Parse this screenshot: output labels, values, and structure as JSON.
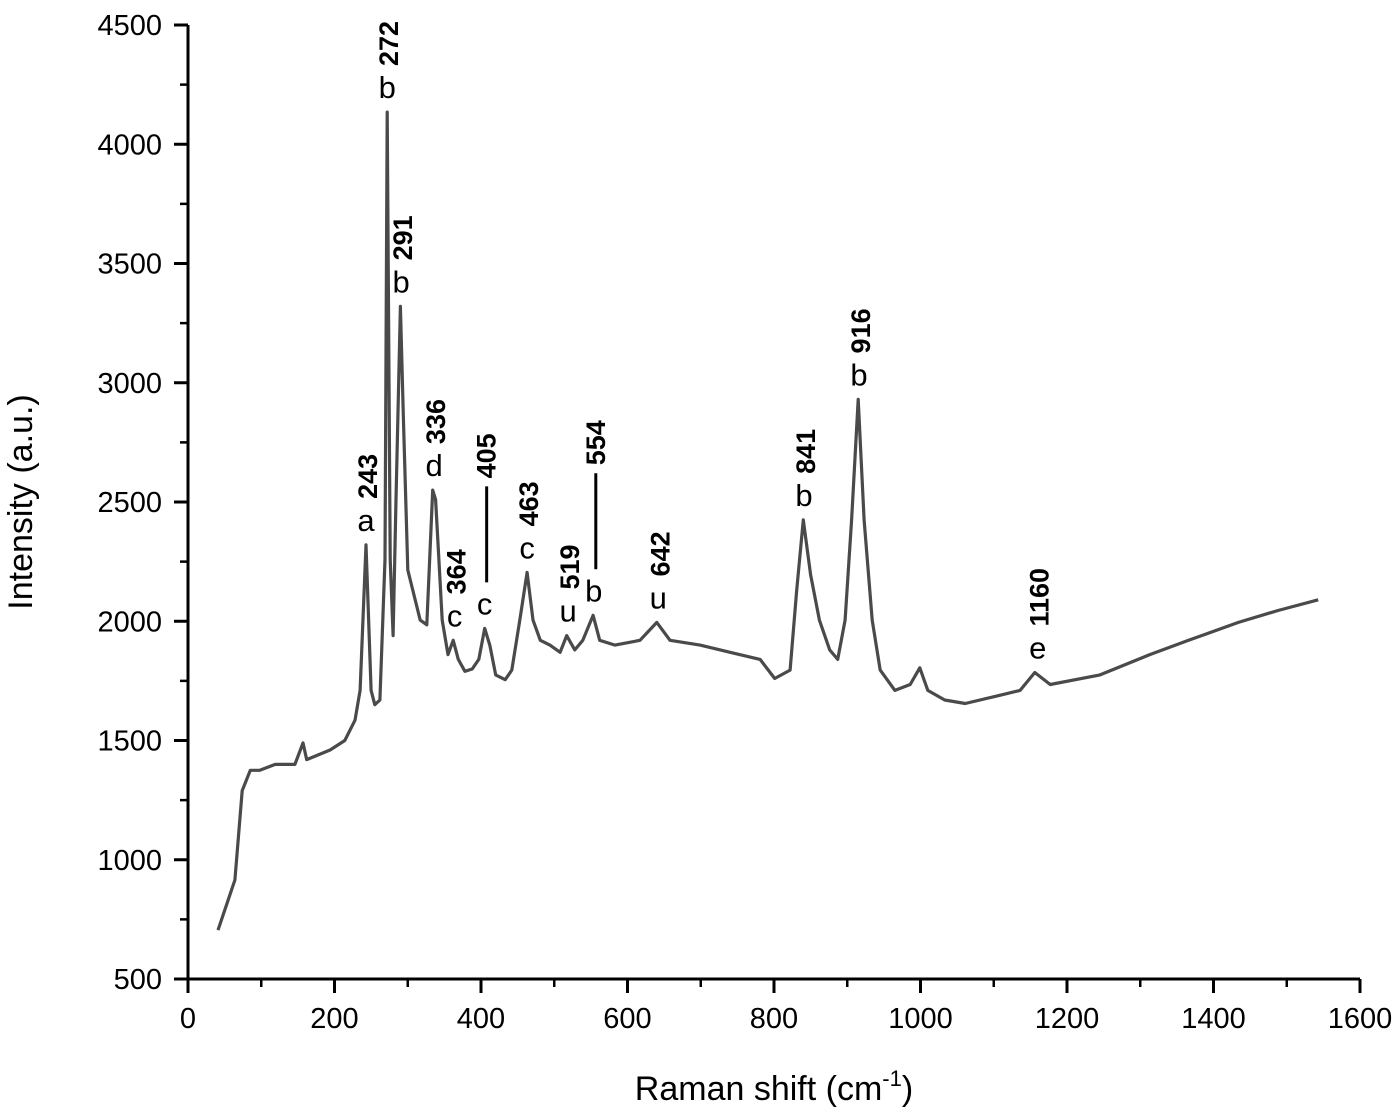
{
  "chart_data": {
    "type": "line",
    "title": "",
    "xlabel": "Raman shift (cm",
    "xlabel_sup": "-1",
    "xlabel_close": ")",
    "ylabel": "Intensity (a.u.)",
    "xlim": [
      0,
      1600
    ],
    "ylim": [
      500,
      4500
    ],
    "x_ticks": [
      0,
      200,
      400,
      600,
      800,
      1000,
      1200,
      1400,
      1600
    ],
    "y_ticks": [
      500,
      1000,
      1500,
      2000,
      2500,
      3000,
      3500,
      4000,
      4500
    ],
    "grid": false,
    "line_color": "#4a4a4a",
    "series": [
      {
        "points": [
          [
            41,
            705
          ],
          [
            64,
            915
          ],
          [
            74,
            1290
          ],
          [
            85,
            1375
          ],
          [
            98,
            1375
          ],
          [
            119,
            1400
          ],
          [
            146,
            1400
          ],
          [
            157,
            1490
          ],
          [
            162,
            1420
          ],
          [
            194,
            1460
          ],
          [
            214,
            1500
          ],
          [
            228,
            1585
          ],
          [
            235,
            1710
          ],
          [
            243,
            2320
          ],
          [
            250,
            1710
          ],
          [
            255,
            1650
          ],
          [
            262,
            1670
          ],
          [
            269,
            2260
          ],
          [
            272,
            4135
          ],
          [
            276,
            2260
          ],
          [
            280,
            1940
          ],
          [
            284,
            2510
          ],
          [
            290,
            3320
          ],
          [
            294,
            2850
          ],
          [
            300,
            2215
          ],
          [
            317,
            2005
          ],
          [
            326,
            1985
          ],
          [
            334,
            2550
          ],
          [
            338,
            2510
          ],
          [
            347,
            2005
          ],
          [
            355,
            1860
          ],
          [
            362,
            1920
          ],
          [
            369,
            1840
          ],
          [
            378,
            1790
          ],
          [
            388,
            1800
          ],
          [
            397,
            1840
          ],
          [
            405,
            1970
          ],
          [
            412,
            1900
          ],
          [
            420,
            1775
          ],
          [
            433,
            1755
          ],
          [
            442,
            1795
          ],
          [
            453,
            2005
          ],
          [
            463,
            2205
          ],
          [
            471,
            2005
          ],
          [
            481,
            1920
          ],
          [
            494,
            1900
          ],
          [
            508,
            1870
          ],
          [
            517,
            1940
          ],
          [
            528,
            1880
          ],
          [
            539,
            1920
          ],
          [
            553,
            2025
          ],
          [
            562,
            1920
          ],
          [
            583,
            1900
          ],
          [
            617,
            1920
          ],
          [
            640,
            1995
          ],
          [
            658,
            1920
          ],
          [
            699,
            1900
          ],
          [
            740,
            1870
          ],
          [
            781,
            1840
          ],
          [
            801,
            1760
          ],
          [
            822,
            1795
          ],
          [
            831,
            2130
          ],
          [
            840,
            2425
          ],
          [
            850,
            2195
          ],
          [
            862,
            2005
          ],
          [
            876,
            1880
          ],
          [
            887,
            1840
          ],
          [
            897,
            2005
          ],
          [
            906,
            2425
          ],
          [
            915,
            2930
          ],
          [
            923,
            2425
          ],
          [
            934,
            2005
          ],
          [
            945,
            1795
          ],
          [
            965,
            1710
          ],
          [
            986,
            1735
          ],
          [
            999,
            1805
          ],
          [
            1010,
            1710
          ],
          [
            1033,
            1670
          ],
          [
            1061,
            1655
          ],
          [
            1109,
            1690
          ],
          [
            1136,
            1710
          ],
          [
            1156,
            1785
          ],
          [
            1177,
            1735
          ],
          [
            1245,
            1775
          ],
          [
            1313,
            1860
          ],
          [
            1366,
            1920
          ],
          [
            1434,
            1995
          ],
          [
            1488,
            2045
          ],
          [
            1543,
            2090
          ]
        ]
      }
    ],
    "annotations": [
      {
        "letter": "a",
        "number": "243",
        "x": 243,
        "y": 2320,
        "line": false
      },
      {
        "letter": "b",
        "number": "272",
        "x": 272,
        "y": 4135,
        "line": false
      },
      {
        "letter": "b",
        "number": "291",
        "x": 291,
        "y": 3320,
        "line": false
      },
      {
        "letter": "d",
        "number": "336",
        "x": 336,
        "y": 2550,
        "line": false
      },
      {
        "letter": "c",
        "number": "364",
        "x": 364,
        "y": 1920,
        "line": false
      },
      {
        "letter": "c",
        "number": "405",
        "x": 405,
        "y": 1970,
        "line": true
      },
      {
        "letter": "c",
        "number": "463",
        "x": 463,
        "y": 2205,
        "line": false
      },
      {
        "letter": "u",
        "number": "519",
        "x": 519,
        "y": 1940,
        "line": false
      },
      {
        "letter": "b",
        "number": "554",
        "x": 554,
        "y": 2025,
        "line": true
      },
      {
        "letter": "u",
        "number": "642",
        "x": 642,
        "y": 1995,
        "line": false
      },
      {
        "letter": "b",
        "number": "841",
        "x": 841,
        "y": 2425,
        "line": false
      },
      {
        "letter": "b",
        "number": "916",
        "x": 916,
        "y": 2930,
        "line": false
      },
      {
        "letter": "e",
        "number": "1160",
        "x": 1160,
        "y": 1785,
        "line": false
      }
    ]
  }
}
